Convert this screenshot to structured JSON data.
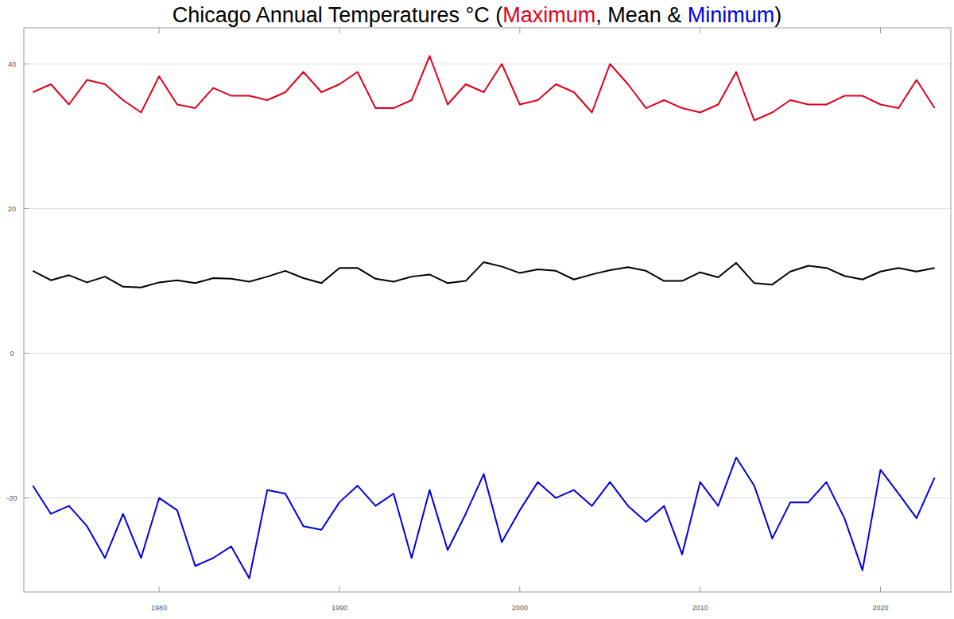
{
  "chart_data": {
    "type": "line",
    "title": "Chicago Annual Temperatures °C (Maximum, Mean & Minimum)",
    "x": [
      1973,
      1974,
      1975,
      1976,
      1977,
      1978,
      1979,
      1980,
      1981,
      1982,
      1983,
      1984,
      1985,
      1986,
      1987,
      1988,
      1989,
      1990,
      1991,
      1992,
      1993,
      1994,
      1995,
      1996,
      1997,
      1998,
      1999,
      2000,
      2001,
      2002,
      2003,
      2004,
      2005,
      2006,
      2007,
      2008,
      2009,
      2010,
      2011,
      2012,
      2013,
      2014,
      2015,
      2016,
      2017,
      2018,
      2019,
      2020,
      2021,
      2022,
      2023
    ],
    "series": [
      {
        "name": "Maximum",
        "color": "#e0001b",
        "values": [
          36.1,
          37.2,
          34.4,
          37.8,
          37.2,
          35.0,
          33.3,
          38.3,
          34.4,
          33.9,
          36.7,
          35.6,
          35.6,
          35.0,
          36.1,
          38.9,
          36.1,
          37.2,
          38.9,
          33.9,
          33.9,
          35.0,
          41.1,
          34.4,
          37.2,
          36.1,
          40.0,
          34.4,
          35.0,
          37.2,
          36.1,
          33.3,
          40.0,
          37.2,
          33.9,
          35.0,
          33.9,
          33.3,
          34.4,
          38.9,
          32.2,
          33.3,
          35.0,
          34.4,
          34.4,
          35.6,
          35.6,
          34.4,
          33.9,
          37.8,
          33.9
        ]
      },
      {
        "name": "Mean",
        "color": "#000000",
        "values": [
          11.4,
          10.1,
          10.8,
          9.8,
          10.6,
          9.2,
          9.1,
          9.8,
          10.1,
          9.7,
          10.4,
          10.3,
          9.9,
          10.6,
          11.4,
          10.4,
          9.7,
          11.8,
          11.8,
          10.3,
          9.9,
          10.6,
          10.9,
          9.7,
          10.0,
          12.6,
          12.0,
          11.1,
          11.6,
          11.4,
          10.2,
          10.9,
          11.5,
          11.9,
          11.4,
          10.0,
          10.0,
          11.2,
          10.5,
          12.5,
          9.7,
          9.5,
          11.3,
          12.1,
          11.8,
          10.7,
          10.2,
          11.3,
          11.8,
          11.3,
          11.8
        ]
      },
      {
        "name": "Minimum",
        "color": "#0000e0",
        "values": [
          -18.3,
          -22.2,
          -21.1,
          -23.9,
          -28.3,
          -22.2,
          -28.3,
          -20.0,
          -21.7,
          -29.4,
          -28.3,
          -26.7,
          -31.1,
          -18.9,
          -19.4,
          -23.9,
          -24.4,
          -20.6,
          -18.3,
          -21.1,
          -19.4,
          -28.3,
          -18.9,
          -27.2,
          -22.2,
          -16.7,
          -26.1,
          -21.7,
          -17.8,
          -20.0,
          -18.9,
          -21.1,
          -17.8,
          -21.1,
          -23.3,
          -21.1,
          -27.8,
          -17.8,
          -21.1,
          -14.4,
          -18.3,
          -25.6,
          -20.6,
          -20.6,
          -17.8,
          -22.8,
          -30.0,
          -16.1,
          -19.4,
          -22.8,
          -17.2
        ]
      }
    ],
    "xlim": [
      1972.5,
      2023.9
    ],
    "xticks": [
      1980,
      1990,
      2000,
      2010,
      2020
    ],
    "ylim": [
      -33,
      45
    ],
    "yticks": [
      -20,
      0,
      20,
      40
    ],
    "grid": true
  }
}
